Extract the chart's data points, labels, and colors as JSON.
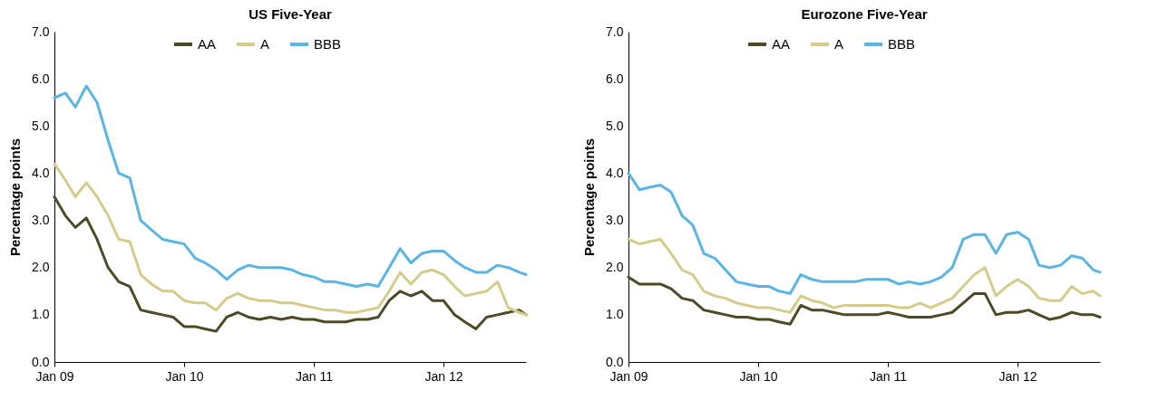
{
  "chart_data": [
    {
      "type": "line",
      "title": "US Five-Year",
      "ylabel": "Percentage points",
      "legend": "top",
      "grid": false,
      "line_style": "solid",
      "marker": "none",
      "x": [
        "2009-01-01",
        "2009-02-01",
        "2009-03-01",
        "2009-04-01",
        "2009-05-01",
        "2009-06-01",
        "2009-07-01",
        "2009-08-01",
        "2009-09-01",
        "2009-10-01",
        "2009-11-01",
        "2009-12-01",
        "2010-01-01",
        "2010-02-01",
        "2010-03-01",
        "2010-04-01",
        "2010-05-01",
        "2010-06-01",
        "2010-07-01",
        "2010-08-01",
        "2010-09-01",
        "2010-10-01",
        "2010-11-01",
        "2010-12-01",
        "2011-01-01",
        "2011-02-01",
        "2011-03-01",
        "2011-04-01",
        "2011-05-01",
        "2011-06-01",
        "2011-07-01",
        "2011-08-01",
        "2011-09-01",
        "2011-10-01",
        "2011-11-01",
        "2011-12-01",
        "2012-01-01",
        "2012-02-01",
        "2012-03-01",
        "2012-04-01",
        "2012-05-01",
        "2012-06-01",
        "2012-07-01",
        "2012-08-01",
        "2012-08-20"
      ],
      "series": [
        {
          "name": "AA",
          "color": "#4d4a26",
          "values": [
            3.5,
            3.1,
            2.85,
            3.05,
            2.6,
            2.0,
            1.7,
            1.6,
            1.1,
            1.05,
            1.0,
            0.95,
            0.75,
            0.75,
            0.7,
            0.65,
            0.95,
            1.05,
            0.95,
            0.9,
            0.95,
            0.9,
            0.95,
            0.9,
            0.9,
            0.85,
            0.85,
            0.85,
            0.9,
            0.9,
            0.95,
            1.3,
            1.5,
            1.4,
            1.5,
            1.3,
            1.3,
            1.0,
            0.85,
            0.7,
            0.95,
            1.0,
            1.05,
            1.1,
            1.0
          ]
        },
        {
          "name": "A",
          "color": "#d4cc8a",
          "values": [
            4.2,
            3.85,
            3.5,
            3.8,
            3.5,
            3.1,
            2.6,
            2.55,
            1.85,
            1.65,
            1.5,
            1.5,
            1.3,
            1.25,
            1.25,
            1.1,
            1.35,
            1.45,
            1.35,
            1.3,
            1.3,
            1.25,
            1.25,
            1.2,
            1.15,
            1.1,
            1.1,
            1.05,
            1.05,
            1.1,
            1.15,
            1.5,
            1.9,
            1.65,
            1.9,
            1.95,
            1.85,
            1.6,
            1.4,
            1.45,
            1.5,
            1.7,
            1.15,
            1.05,
            1.0
          ]
        },
        {
          "name": "BBB",
          "color": "#5ab4e5",
          "values": [
            5.6,
            5.7,
            5.4,
            5.85,
            5.5,
            4.7,
            4.0,
            3.9,
            3.0,
            2.8,
            2.6,
            2.55,
            2.5,
            2.2,
            2.1,
            1.95,
            1.75,
            1.95,
            2.05,
            2.0,
            2.0,
            2.0,
            1.95,
            1.85,
            1.8,
            1.7,
            1.7,
            1.65,
            1.6,
            1.65,
            1.6,
            2.0,
            2.4,
            2.1,
            2.3,
            2.35,
            2.35,
            2.15,
            2.0,
            1.9,
            1.9,
            2.05,
            2.0,
            1.9,
            1.85
          ]
        }
      ],
      "xlim": [
        "2009-01-01",
        "2012-08-20"
      ],
      "xticks": [
        {
          "value": "2009-01-01",
          "label": "Jan 09"
        },
        {
          "value": "2010-01-01",
          "label": "Jan 10"
        },
        {
          "value": "2011-01-01",
          "label": "Jan 11"
        },
        {
          "value": "2012-01-01",
          "label": "Jan 12"
        }
      ],
      "ylim": [
        0,
        7
      ],
      "yticks": [
        {
          "value": 0,
          "label": "0.0"
        },
        {
          "value": 1,
          "label": "1.0"
        },
        {
          "value": 2,
          "label": "2.0"
        },
        {
          "value": 3,
          "label": "3.0"
        },
        {
          "value": 4,
          "label": "4.0"
        },
        {
          "value": 5,
          "label": "5.0"
        },
        {
          "value": 6,
          "label": "6.0"
        },
        {
          "value": 7,
          "label": "7.0"
        }
      ]
    },
    {
      "type": "line",
      "title": "Eurozone Five-Year",
      "ylabel": "Percentage points",
      "legend": "top",
      "grid": false,
      "line_style": "solid",
      "marker": "none",
      "x": [
        "2009-01-01",
        "2009-02-01",
        "2009-03-01",
        "2009-04-01",
        "2009-05-01",
        "2009-06-01",
        "2009-07-01",
        "2009-08-01",
        "2009-09-01",
        "2009-10-01",
        "2009-11-01",
        "2009-12-01",
        "2010-01-01",
        "2010-02-01",
        "2010-03-01",
        "2010-04-01",
        "2010-05-01",
        "2010-06-01",
        "2010-07-01",
        "2010-08-01",
        "2010-09-01",
        "2010-10-01",
        "2010-11-01",
        "2010-12-01",
        "2011-01-01",
        "2011-02-01",
        "2011-03-01",
        "2011-04-01",
        "2011-05-01",
        "2011-06-01",
        "2011-07-01",
        "2011-08-01",
        "2011-09-01",
        "2011-10-01",
        "2011-11-01",
        "2011-12-01",
        "2012-01-01",
        "2012-02-01",
        "2012-03-01",
        "2012-04-01",
        "2012-05-01",
        "2012-06-01",
        "2012-07-01",
        "2012-08-01",
        "2012-08-20"
      ],
      "series": [
        {
          "name": "AA",
          "color": "#4d4a26",
          "values": [
            1.8,
            1.65,
            1.65,
            1.65,
            1.55,
            1.35,
            1.3,
            1.1,
            1.05,
            1.0,
            0.95,
            0.95,
            0.9,
            0.9,
            0.85,
            0.8,
            1.2,
            1.1,
            1.1,
            1.05,
            1.0,
            1.0,
            1.0,
            1.0,
            1.05,
            1.0,
            0.95,
            0.95,
            0.95,
            1.0,
            1.05,
            1.25,
            1.45,
            1.45,
            1.0,
            1.05,
            1.05,
            1.1,
            1.0,
            0.9,
            0.95,
            1.05,
            1.0,
            1.0,
            0.95
          ]
        },
        {
          "name": "A",
          "color": "#d4cc8a",
          "values": [
            2.6,
            2.5,
            2.55,
            2.6,
            2.3,
            1.95,
            1.85,
            1.5,
            1.4,
            1.35,
            1.25,
            1.2,
            1.15,
            1.15,
            1.1,
            1.05,
            1.4,
            1.3,
            1.25,
            1.15,
            1.2,
            1.2,
            1.2,
            1.2,
            1.2,
            1.15,
            1.15,
            1.25,
            1.15,
            1.25,
            1.35,
            1.6,
            1.85,
            2.0,
            1.4,
            1.6,
            1.75,
            1.6,
            1.35,
            1.3,
            1.3,
            1.6,
            1.45,
            1.5,
            1.4
          ]
        },
        {
          "name": "BBB",
          "color": "#5ab4e5",
          "values": [
            4.0,
            3.65,
            3.7,
            3.75,
            3.6,
            3.1,
            2.9,
            2.3,
            2.2,
            1.95,
            1.7,
            1.65,
            1.6,
            1.6,
            1.5,
            1.45,
            1.85,
            1.75,
            1.7,
            1.7,
            1.7,
            1.7,
            1.75,
            1.75,
            1.75,
            1.65,
            1.7,
            1.65,
            1.7,
            1.8,
            2.0,
            2.6,
            2.7,
            2.7,
            2.3,
            2.7,
            2.75,
            2.6,
            2.05,
            2.0,
            2.05,
            2.25,
            2.2,
            1.95,
            1.9
          ]
        }
      ],
      "xlim": [
        "2009-01-01",
        "2012-08-20"
      ],
      "xticks": [
        {
          "value": "2009-01-01",
          "label": "Jan 09"
        },
        {
          "value": "2010-01-01",
          "label": "Jan 10"
        },
        {
          "value": "2011-01-01",
          "label": "Jan 11"
        },
        {
          "value": "2012-01-01",
          "label": "Jan 12"
        }
      ],
      "ylim": [
        0,
        7
      ],
      "yticks": [
        {
          "value": 0,
          "label": "0.0"
        },
        {
          "value": 1,
          "label": "1.0"
        },
        {
          "value": 2,
          "label": "2.0"
        },
        {
          "value": 3,
          "label": "3.0"
        },
        {
          "value": 4,
          "label": "4.0"
        },
        {
          "value": 5,
          "label": "5.0"
        },
        {
          "value": 6,
          "label": "6.0"
        },
        {
          "value": 7,
          "label": "7.0"
        }
      ]
    }
  ]
}
